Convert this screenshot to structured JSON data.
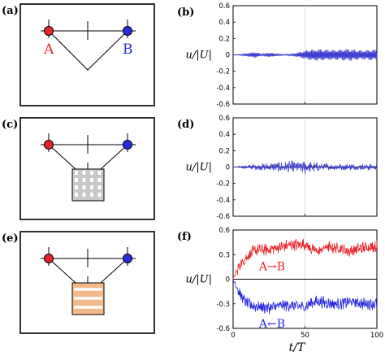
{
  "figure": {
    "panel_labels": [
      "(a)",
      "(b)",
      "(c)",
      "(d)",
      "(e)",
      "(f)"
    ],
    "point_labels": {
      "a": "A",
      "b": "B"
    },
    "colors": {
      "red": "#e8242a",
      "blue": "#2a2ae0",
      "orange": "#f4b98a",
      "gray": "#9a9a9a",
      "frame": "#000000"
    }
  },
  "chart_data": [
    {
      "type": "line",
      "panel": "(b)",
      "ylabel": "u/|U|",
      "xlabel": "",
      "xlim": [
        0,
        100
      ],
      "ylim": [
        -0.6,
        0.6
      ],
      "yticks": [
        "0.6",
        "0.4",
        "0.2",
        "0",
        "-0.2",
        "-0.4",
        "-0.6"
      ],
      "xticks": [],
      "series": [
        {
          "color": "#4040d0",
          "x": [
            0,
            5,
            10,
            15,
            20,
            25,
            30,
            35,
            40,
            45,
            50,
            55,
            60,
            65,
            70,
            75,
            80,
            85,
            90,
            95,
            100
          ],
          "envelope": [
            0.0,
            0.005,
            0.02,
            0.04,
            0.01,
            0.03,
            0.015,
            0.005,
            0.01,
            0.03,
            0.055,
            0.07,
            0.075,
            0.07,
            0.065,
            0.07,
            0.075,
            0.07,
            0.06,
            0.07,
            0.07
          ]
        }
      ]
    },
    {
      "type": "line",
      "panel": "(d)",
      "ylabel": "u/|U|",
      "xlabel": "",
      "xlim": [
        0,
        100
      ],
      "ylim": [
        -0.6,
        0.6
      ],
      "yticks": [
        "0.6",
        "0.4",
        "0.2",
        "0",
        "-0.2",
        "-0.4",
        "-0.6"
      ],
      "xticks": [],
      "series": [
        {
          "color": "#4040d0",
          "x": [
            0,
            5,
            10,
            15,
            20,
            25,
            30,
            35,
            40,
            45,
            50,
            55,
            60,
            65,
            70,
            75,
            80,
            85,
            90,
            95,
            100
          ],
          "envelope": [
            0.0,
            0.01,
            0.02,
            0.03,
            0.03,
            0.04,
            0.04,
            0.05,
            0.06,
            0.05,
            0.07,
            0.05,
            0.04,
            0.035,
            0.03,
            0.03,
            0.03,
            0.025,
            0.03,
            0.03,
            0.03
          ]
        }
      ]
    },
    {
      "type": "line",
      "panel": "(f)",
      "ylabel": "u/|U|",
      "xlabel": "t/T",
      "xlim": [
        0,
        100
      ],
      "ylim": [
        -0.6,
        0.6
      ],
      "yticks": [
        "0.6",
        "0.3",
        "0",
        "-0.3",
        "-0.6"
      ],
      "xticks": [
        "0",
        "50",
        "100"
      ],
      "annotations": [
        "A→B",
        "A←B"
      ],
      "series": [
        {
          "color": "#e8242a",
          "x": [
            0,
            3,
            6,
            10,
            15,
            20,
            25,
            30,
            35,
            40,
            45,
            50,
            55,
            60,
            65,
            70,
            75,
            80,
            85,
            90,
            95,
            100
          ],
          "y": [
            0.0,
            0.12,
            0.2,
            0.28,
            0.35,
            0.36,
            0.36,
            0.38,
            0.4,
            0.42,
            0.42,
            0.43,
            0.36,
            0.34,
            0.4,
            0.38,
            0.38,
            0.34,
            0.36,
            0.38,
            0.4,
            0.4
          ]
        },
        {
          "color": "#2a2ae0",
          "x": [
            0,
            3,
            6,
            10,
            15,
            20,
            25,
            30,
            35,
            40,
            45,
            50,
            55,
            60,
            65,
            70,
            75,
            80,
            85,
            90,
            95,
            100
          ],
          "y": [
            0.0,
            -0.12,
            -0.22,
            -0.3,
            -0.33,
            -0.34,
            -0.35,
            -0.33,
            -0.32,
            -0.32,
            -0.33,
            -0.34,
            -0.28,
            -0.27,
            -0.29,
            -0.3,
            -0.3,
            -0.28,
            -0.28,
            -0.3,
            -0.3,
            -0.3
          ]
        }
      ]
    }
  ]
}
